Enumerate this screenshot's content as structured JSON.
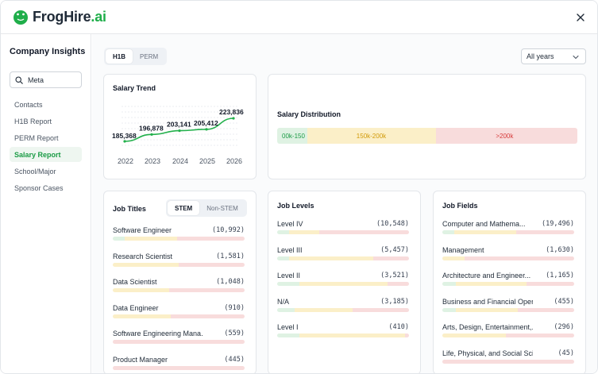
{
  "app": {
    "name_main": "FrogHire",
    "name_accent": ".ai",
    "close_icon": "close-icon"
  },
  "sidebar": {
    "title": "Company Insights",
    "search": {
      "value": "Meta"
    },
    "items": [
      {
        "label": "Contacts",
        "active": false
      },
      {
        "label": "H1B Report",
        "active": false
      },
      {
        "label": "PERM Report",
        "active": false
      },
      {
        "label": "Salary Report",
        "active": true
      },
      {
        "label": "School/Major",
        "active": false
      },
      {
        "label": "Sponsor Cases",
        "active": false
      }
    ]
  },
  "toolbar": {
    "visa_tabs": [
      {
        "label": "H1B",
        "active": true
      },
      {
        "label": "PERM",
        "active": false
      }
    ],
    "year_select": "All years"
  },
  "salary_trend": {
    "title": "Salary Trend",
    "chart_data": {
      "type": "line",
      "x": [
        "2022",
        "2023",
        "2024",
        "2025",
        "2026"
      ],
      "values": [
        185368,
        196878,
        203141,
        205412,
        223836
      ],
      "labels": [
        "185,368",
        "196,878",
        "203,141",
        "205,412",
        "223,836"
      ],
      "line_color": "#22b04b",
      "grid": true
    }
  },
  "salary_distribution": {
    "title": "Salary Distribution",
    "segments": [
      {
        "label": "00k-150",
        "share": 0.1,
        "bg": "#dff2e3",
        "color": "#1a9b45"
      },
      {
        "label": "150k-200k",
        "share": 0.43,
        "bg": "#fbefc8",
        "color": "#d19a09"
      },
      {
        "label": ">200k",
        "share": 0.47,
        "bg": "#f8dcdc",
        "color": "#d63b3b"
      }
    ]
  },
  "job_titles": {
    "title": "Job Titles",
    "tabs": [
      {
        "label": "STEM",
        "active": true
      },
      {
        "label": "Non-STEM",
        "active": false
      }
    ],
    "rows": [
      {
        "label": "Software Engineer",
        "count": "(10,992)",
        "g": 0.09,
        "y": 0.4
      },
      {
        "label": "Research Scientist",
        "count": "(1,581)",
        "g": 0.0,
        "y": 0.5
      },
      {
        "label": "Data Scientist",
        "count": "(1,048)",
        "g": 0.0,
        "y": 0.43
      },
      {
        "label": "Data Engineer",
        "count": "(910)",
        "g": 0.0,
        "y": 0.44
      },
      {
        "label": "Software Engineering Mana...",
        "count": "(559)",
        "g": 0.0,
        "y": 0.0
      },
      {
        "label": "Product Manager",
        "count": "(445)",
        "g": 0.0,
        "y": 0.0
      }
    ]
  },
  "job_levels": {
    "title": "Job Levels",
    "rows": [
      {
        "label": "Level IV",
        "count": "(10,548)",
        "g": 0.09,
        "y": 0.23
      },
      {
        "label": "Level III",
        "count": "(5,457)",
        "g": 0.09,
        "y": 0.64
      },
      {
        "label": "Level II",
        "count": "(3,521)",
        "g": 0.17,
        "y": 0.67
      },
      {
        "label": "N/A",
        "count": "(3,185)",
        "g": 0.13,
        "y": 0.44
      },
      {
        "label": "Level I",
        "count": "(410)",
        "g": 0.17,
        "y": 0.8
      }
    ]
  },
  "job_fields": {
    "title": "Job Fields",
    "rows": [
      {
        "label": "Computer and Mathema...",
        "count": "(19,496)",
        "g": 0.09,
        "y": 0.47
      },
      {
        "label": "Management",
        "count": "(1,630)",
        "g": 0.0,
        "y": 0.17
      },
      {
        "label": "Architecture and Engineer...",
        "count": "(1,165)",
        "g": 0.1,
        "y": 0.54
      },
      {
        "label": "Business and Financial Oper...",
        "count": "(455)",
        "g": 0.1,
        "y": 0.47
      },
      {
        "label": "Arts, Design, Entertainment,...",
        "count": "(296)",
        "g": 0.0,
        "y": 0.48
      },
      {
        "label": "Life, Physical, and Social Scie...",
        "count": "(45)",
        "g": 0.0,
        "y": 0.0
      }
    ]
  }
}
